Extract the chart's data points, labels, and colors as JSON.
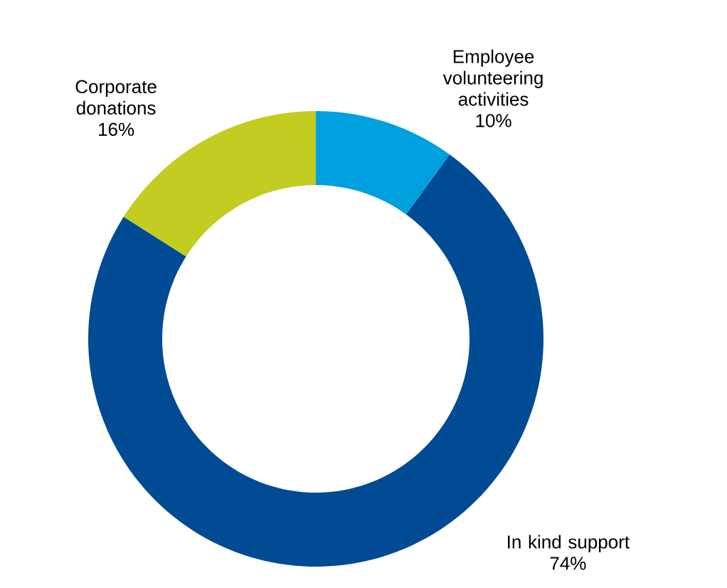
{
  "chart_data": {
    "type": "donut",
    "categories": [
      "Employee volunteering activities",
      "In kind support",
      "Corporate donations"
    ],
    "values": [
      10,
      74,
      16
    ],
    "colors": [
      "#00a0df",
      "#004b93",
      "#c3cd21"
    ],
    "value_labels": [
      "10%",
      "74%",
      "16%"
    ]
  }
}
